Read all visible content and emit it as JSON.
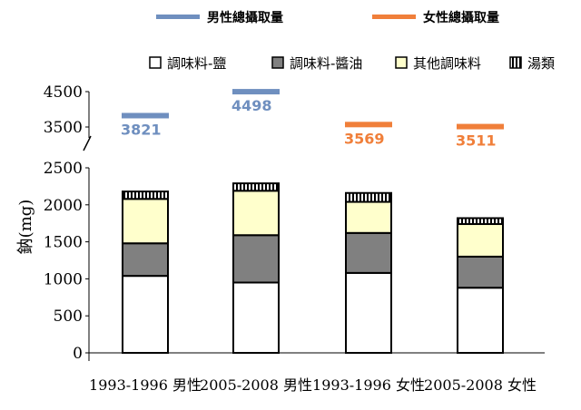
{
  "chart_data": {
    "type": "bar",
    "stacked": true,
    "ylabel": "鈉(mg)",
    "xlabel": "",
    "title": "",
    "axis_break": true,
    "ylim_lower": [
      0,
      2500
    ],
    "ylim_upper": [
      3500,
      4500
    ],
    "yticks": [
      "0",
      "500",
      "1000",
      "1500",
      "2000",
      "2500",
      "3500",
      "4500"
    ],
    "categories": [
      "1993-1996 男性",
      "2005-2008 男性",
      "1993-1996 女性",
      "2005-2008 女性"
    ],
    "series": [
      {
        "name": "調味料-鹽",
        "values": [
          1040,
          950,
          1080,
          880
        ],
        "color": "#ffffff"
      },
      {
        "name": "調味料-醬油",
        "values": [
          440,
          640,
          540,
          420
        ],
        "color": "#808080"
      },
      {
        "name": "其他調味料",
        "values": [
          600,
          600,
          420,
          440
        ],
        "color": "#ffffcc"
      },
      {
        "name": "湯類",
        "values": [
          100,
          100,
          120,
          80
        ],
        "color": "#ffffff",
        "pattern": "vertical-stripes"
      }
    ],
    "total_intake": {
      "series_labels": {
        "male": "男性總攝取量",
        "female": "女性總攝取量"
      },
      "colors": {
        "male": "#6f8fbf",
        "female": "#f07f3a"
      },
      "values": [
        3821,
        4498,
        3569,
        3511
      ],
      "labels": [
        "3821",
        "4498",
        "3569",
        "3511"
      ],
      "sex": [
        "male",
        "male",
        "female",
        "female"
      ]
    },
    "legend_placement": "top",
    "grid": false
  }
}
